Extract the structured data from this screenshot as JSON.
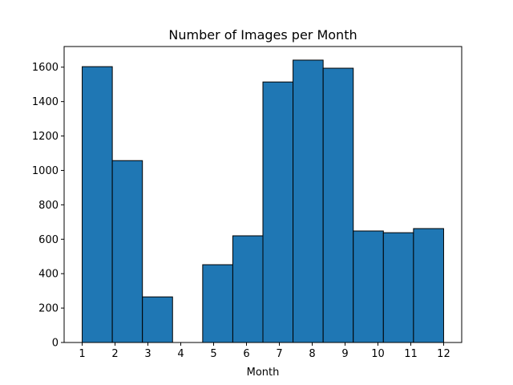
{
  "chart_data": {
    "type": "bar",
    "title": "Number of Images per Month",
    "xlabel": "Month",
    "ylabel": "",
    "xlim": [
      0.45,
      12.55
    ],
    "ylim": [
      0,
      1720
    ],
    "x_ticks": [
      1,
      2,
      3,
      4,
      5,
      6,
      7,
      8,
      9,
      10,
      11,
      12
    ],
    "y_ticks": [
      0,
      200,
      400,
      600,
      800,
      1000,
      1200,
      1400,
      1600
    ],
    "bins": [
      {
        "x0": 1.0,
        "x1": 1.9167,
        "value": 1603
      },
      {
        "x0": 1.9167,
        "x1": 2.8333,
        "value": 1057
      },
      {
        "x0": 2.8333,
        "x1": 3.75,
        "value": 265
      },
      {
        "x0": 3.75,
        "x1": 4.6667,
        "value": 0
      },
      {
        "x0": 4.6667,
        "x1": 5.5833,
        "value": 452
      },
      {
        "x0": 5.5833,
        "x1": 6.5,
        "value": 620
      },
      {
        "x0": 6.5,
        "x1": 7.4167,
        "value": 1514
      },
      {
        "x0": 7.4167,
        "x1": 8.3333,
        "value": 1641
      },
      {
        "x0": 8.3333,
        "x1": 9.25,
        "value": 1594
      },
      {
        "x0": 9.25,
        "x1": 10.1667,
        "value": 648
      },
      {
        "x0": 10.1667,
        "x1": 11.0833,
        "value": 638
      },
      {
        "x0": 11.0833,
        "x1": 12.0,
        "value": 662
      }
    ],
    "bar_color": "#1f77b4",
    "edge_color": "#000000",
    "grid": false,
    "legend": "none"
  }
}
